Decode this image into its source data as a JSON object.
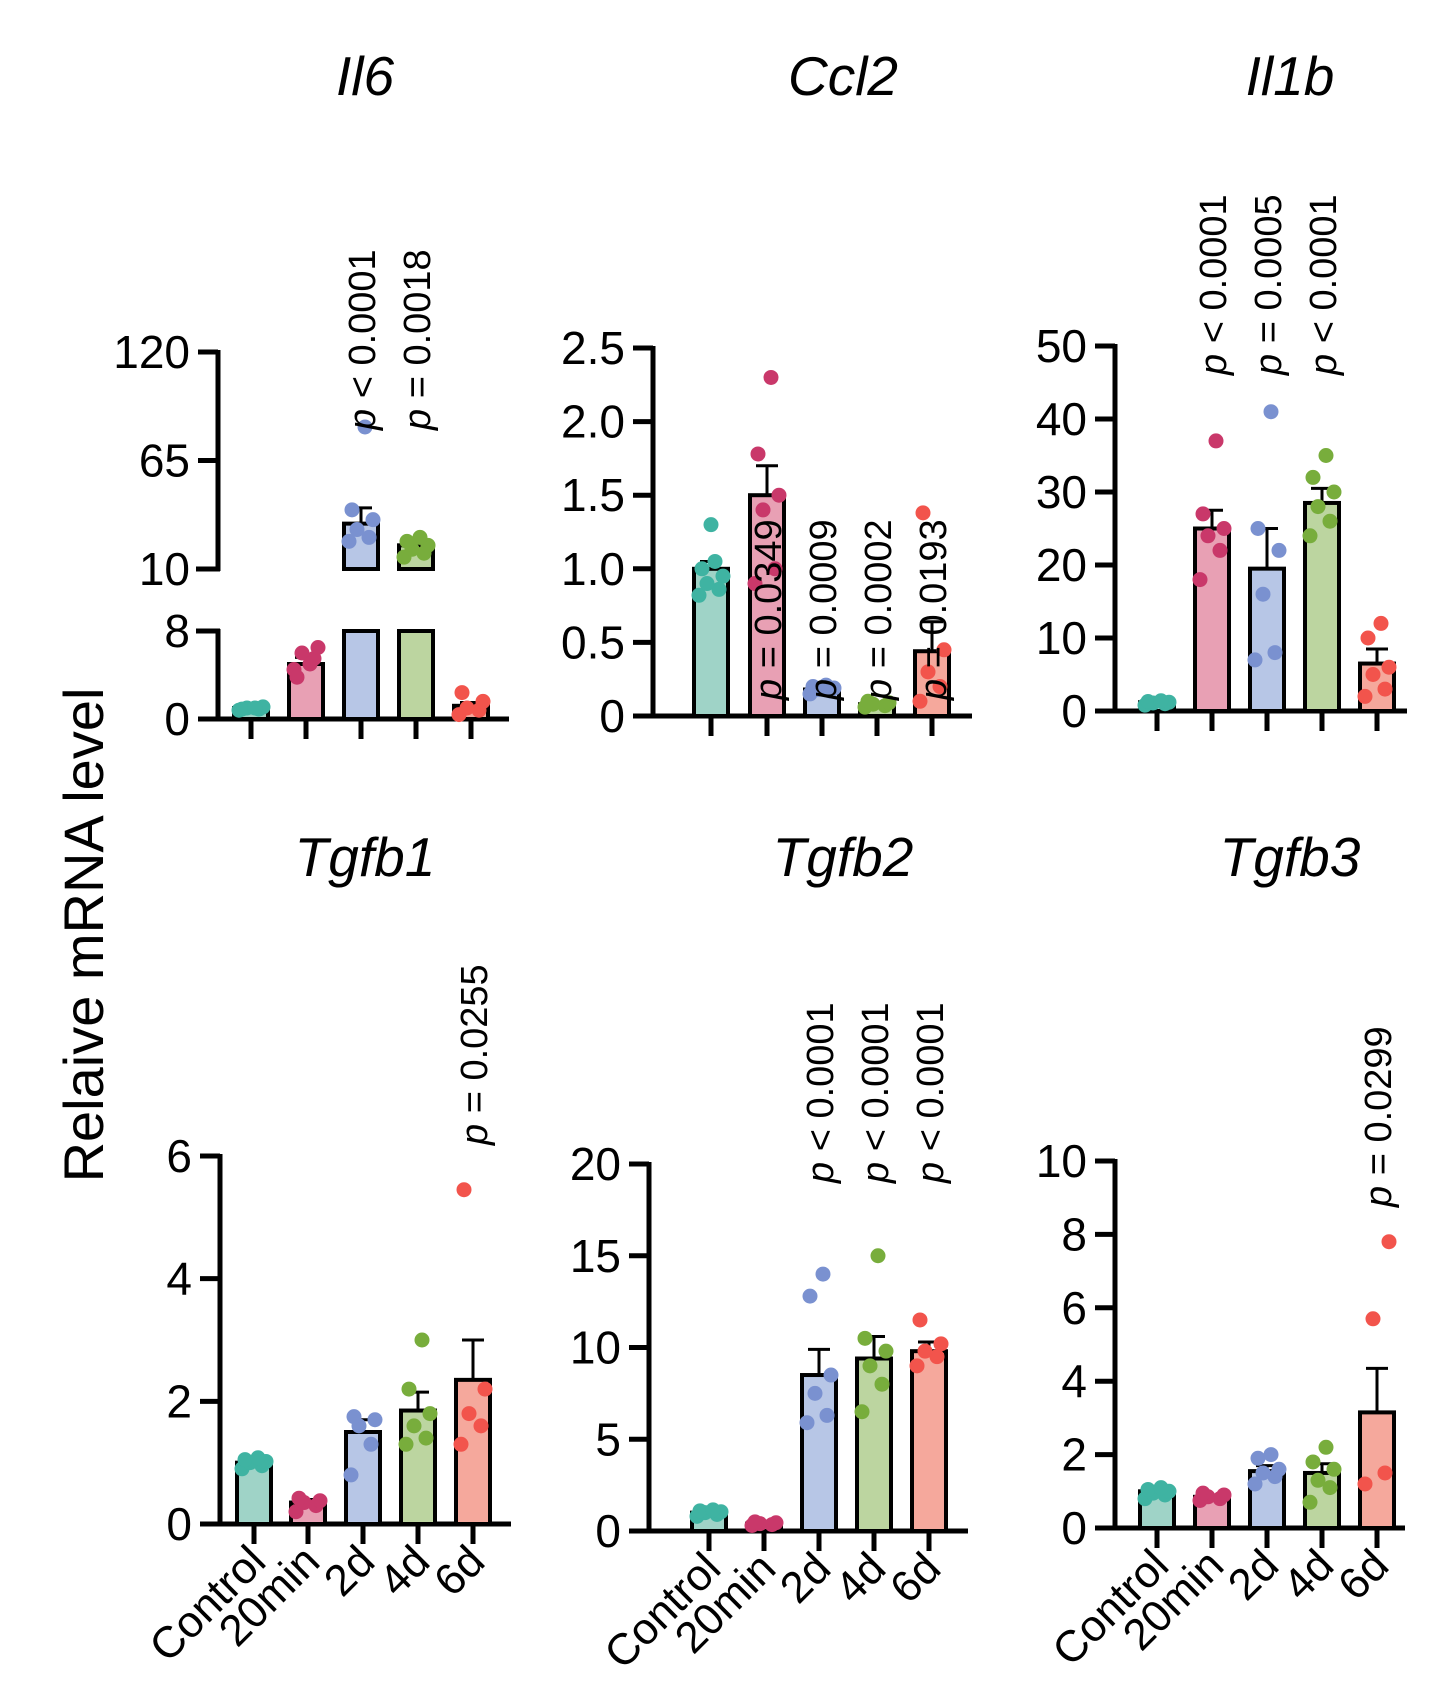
{
  "figure": {
    "ylabel": "Relaive mRNA level",
    "colors": {
      "fill": [
        "#9fd3c7",
        "#e8a0b4",
        "#b7c6e6",
        "#bcd5a0",
        "#f5a89c"
      ],
      "dot": [
        "#3fb3a2",
        "#c9386a",
        "#7a91d0",
        "#78ad3c",
        "#f2544c"
      ],
      "axis": "#000000"
    }
  },
  "chart_data": [
    {
      "type": "bar",
      "title": "Il6",
      "categories": [
        "Control",
        "20min",
        "2d",
        "4d",
        "6d"
      ],
      "values": [
        1.0,
        5.0,
        33,
        22,
        1.2
      ],
      "errors": [
        0.2,
        0.6,
        8,
        3,
        0.3
      ],
      "points": [
        [
          0.8,
          0.9,
          1.0,
          1.1,
          0.9,
          1.0
        ],
        [
          4.5,
          5.5,
          6.0,
          6.5,
          3.8,
          5.0
        ],
        [
          24,
          26,
          30,
          35,
          40,
          82
        ],
        [
          16,
          18,
          20,
          22,
          24,
          26
        ],
        [
          0.4,
          0.8,
          1.0,
          1.6,
          2.4
        ]
      ],
      "pvalues": [
        "",
        "",
        "< 0.0001",
        "= 0.0018",
        ""
      ],
      "y_broken": true,
      "y_ticks": [
        "0",
        "8",
        "10",
        "65",
        "120"
      ],
      "ylim_lower": [
        0,
        8
      ],
      "ylim_upper": [
        10,
        120
      ]
    },
    {
      "type": "bar",
      "title": "Ccl2",
      "categories": [
        "Control",
        "20min",
        "2d",
        "4d",
        "6d"
      ],
      "values": [
        1.0,
        1.5,
        0.18,
        0.08,
        0.44
      ],
      "errors": [
        0.05,
        0.2,
        0.02,
        0.01,
        0.2
      ],
      "points": [
        [
          0.82,
          0.86,
          0.9,
          0.95,
          1.0,
          1.05,
          1.3
        ],
        [
          0.9,
          1.0,
          1.4,
          1.5,
          1.78,
          2.3
        ],
        [
          0.15,
          0.17,
          0.18,
          0.19,
          0.2,
          0.21
        ],
        [
          0.06,
          0.07,
          0.08,
          0.09,
          0.1
        ],
        [
          0.1,
          0.2,
          0.3,
          0.45,
          1.38
        ]
      ],
      "pvalues": [
        "",
        "= 0.0349",
        "= 0.0009",
        "= 0.0002",
        "= 0.0193"
      ],
      "y_ticks": [
        "0",
        "0.5",
        "1.0",
        "1.5",
        "2.0",
        "2.5"
      ],
      "ylim": [
        0,
        2.5
      ]
    },
    {
      "type": "bar",
      "title": "Il1b",
      "categories": [
        "Control",
        "20min",
        "2d",
        "4d",
        "6d"
      ],
      "values": [
        1.2,
        25,
        19.5,
        28.5,
        6.5
      ],
      "errors": [
        0.2,
        2.5,
        5.5,
        2,
        2
      ],
      "points": [
        [
          0.8,
          1.0,
          1.1,
          1.2,
          1.3,
          1.4
        ],
        [
          18,
          22,
          24,
          25,
          27,
          37
        ],
        [
          7,
          8,
          16,
          22,
          25,
          41
        ],
        [
          24,
          26,
          28,
          30,
          32,
          35
        ],
        [
          2,
          3,
          5,
          6,
          10,
          12
        ]
      ],
      "pvalues": [
        "",
        "< 0.0001",
        "= 0.0005",
        "< 0.0001",
        ""
      ],
      "y_ticks": [
        "0",
        "10",
        "20",
        "30",
        "40",
        "50"
      ],
      "ylim": [
        0,
        50
      ]
    },
    {
      "type": "bar",
      "title": "Tgfb1",
      "categories": [
        "Control",
        "20min",
        "2d",
        "4d",
        "6d"
      ],
      "values": [
        1.0,
        0.35,
        1.5,
        1.85,
        2.35
      ],
      "errors": [
        0.05,
        0.05,
        0.2,
        0.3,
        0.65
      ],
      "points": [
        [
          0.9,
          0.95,
          1.0,
          1.02,
          1.05,
          1.08
        ],
        [
          0.2,
          0.3,
          0.35,
          0.38,
          0.42
        ],
        [
          0.8,
          1.3,
          1.6,
          1.7,
          1.75
        ],
        [
          1.3,
          1.4,
          1.6,
          1.8,
          2.2,
          3.0
        ],
        [
          1.3,
          1.6,
          1.8,
          2.2,
          5.45
        ]
      ],
      "pvalues": [
        "",
        "",
        "",
        "",
        "= 0.0255"
      ],
      "y_ticks": [
        "0",
        "2",
        "4",
        "6"
      ],
      "ylim": [
        0,
        6
      ]
    },
    {
      "type": "bar",
      "title": "Tgfb2",
      "categories": [
        "Control",
        "20min",
        "2d",
        "4d",
        "6d"
      ],
      "values": [
        1.0,
        0.4,
        8.5,
        9.4,
        9.8
      ],
      "errors": [
        0.1,
        0.05,
        1.4,
        1.2,
        0.5
      ],
      "points": [
        [
          0.8,
          0.9,
          1.0,
          1.05,
          1.1,
          1.15
        ],
        [
          0.3,
          0.35,
          0.4,
          0.45,
          0.5
        ],
        [
          5.9,
          6.3,
          7.5,
          8.5,
          12.8,
          14.0
        ],
        [
          6.5,
          8.0,
          9.0,
          9.8,
          10.5,
          15.0
        ],
        [
          9.0,
          9.5,
          9.8,
          10.2,
          11.5
        ]
      ],
      "pvalues": [
        "",
        "",
        "< 0.0001",
        "< 0.0001",
        "< 0.0001"
      ],
      "y_ticks": [
        "0",
        "5",
        "10",
        "15",
        "20"
      ],
      "ylim": [
        0,
        20
      ]
    },
    {
      "type": "bar",
      "title": "Tgfb3",
      "categories": [
        "Control",
        "20min",
        "2d",
        "4d",
        "6d"
      ],
      "values": [
        1.0,
        0.85,
        1.55,
        1.5,
        3.15
      ],
      "errors": [
        0.05,
        0.05,
        0.15,
        0.25,
        1.2
      ],
      "points": [
        [
          0.8,
          0.9,
          0.95,
          1.0,
          1.05,
          1.1
        ],
        [
          0.75,
          0.8,
          0.85,
          0.9,
          0.95
        ],
        [
          1.2,
          1.4,
          1.5,
          1.6,
          1.9,
          2.0
        ],
        [
          0.7,
          1.1,
          1.3,
          1.6,
          1.8,
          2.2
        ],
        [
          1.2,
          1.5,
          5.7,
          7.8
        ]
      ],
      "pvalues": [
        "",
        "",
        "",
        "",
        "= 0.0299"
      ],
      "y_ticks": [
        "0",
        "2",
        "4",
        "6",
        "8",
        "10"
      ],
      "ylim": [
        0,
        10
      ]
    }
  ]
}
